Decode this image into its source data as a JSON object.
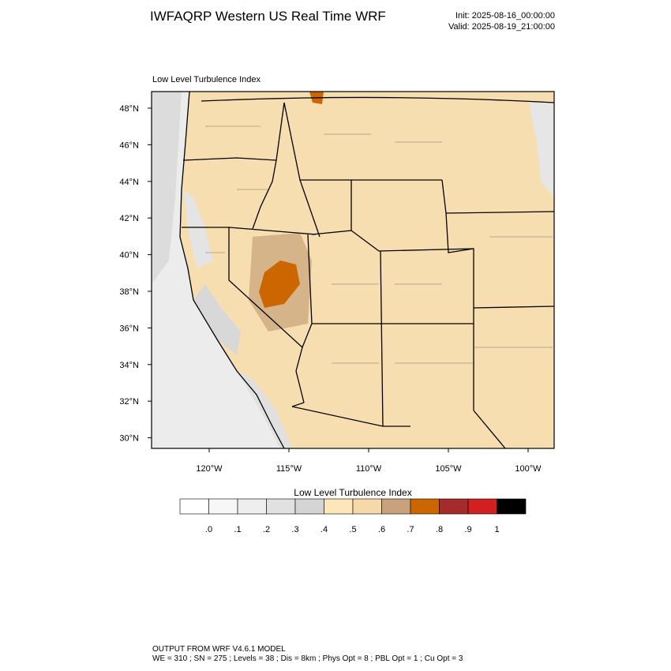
{
  "header": {
    "title": "IWFAQRP Western US Real Time WRF",
    "init": "Init: 2025-08-16_00:00:00",
    "valid": "Valid: 2025-08-19_21:00:00"
  },
  "map": {
    "subtitle": "Low Level Turbulence Index",
    "lat_labels": [
      {
        "value": 48,
        "label": "48°N"
      },
      {
        "value": 46,
        "label": "46°N"
      },
      {
        "value": 44,
        "label": "44°N"
      },
      {
        "value": 42,
        "label": "42°N"
      },
      {
        "value": 40,
        "label": "40°N"
      },
      {
        "value": 38,
        "label": "38°N"
      },
      {
        "value": 36,
        "label": "36°N"
      },
      {
        "value": 34,
        "label": "34°N"
      },
      {
        "value": 32,
        "label": "32°N"
      },
      {
        "value": 30,
        "label": "30°N"
      }
    ],
    "lon_labels": [
      {
        "value": -120,
        "label": "120°W"
      },
      {
        "value": -115,
        "label": "115°W"
      },
      {
        "value": -110,
        "label": "110°W"
      },
      {
        "value": -105,
        "label": "105°W"
      },
      {
        "value": -100,
        "label": "100°W"
      }
    ]
  },
  "colorbar": {
    "title": "Low Level Turbulence Index",
    "colors": [
      "#ffffff",
      "#f7f7f7",
      "#eeeeee",
      "#e1e1e1",
      "#d4d4d4",
      "#fde6b8",
      "#f5d9a8",
      "#c8a27c",
      "#cc6600",
      "#a52a2a",
      "#d22020",
      "#000000"
    ],
    "levels": [
      {
        "value": 0,
        "label": ".0"
      },
      {
        "value": 0.1,
        "label": ".1"
      },
      {
        "value": 0.2,
        "label": ".2"
      },
      {
        "value": 0.3,
        "label": ".3"
      },
      {
        "value": 0.4,
        "label": ".4"
      },
      {
        "value": 0.5,
        "label": ".5"
      },
      {
        "value": 0.6,
        "label": ".6"
      },
      {
        "value": 0.7,
        "label": ".7"
      },
      {
        "value": 0.8,
        "label": ".8"
      },
      {
        "value": 0.9,
        "label": ".9"
      },
      {
        "value": 1,
        "label": "1"
      }
    ]
  },
  "footer": {
    "line1": "OUTPUT FROM WRF V4.6.1 MODEL",
    "line2": "WE = 310 ; SN = 275 ; Levels = 38 ; Dis = 8km ; Phys Opt = 8 ; PBL Opt = 1 ; Cu Opt = 3"
  }
}
